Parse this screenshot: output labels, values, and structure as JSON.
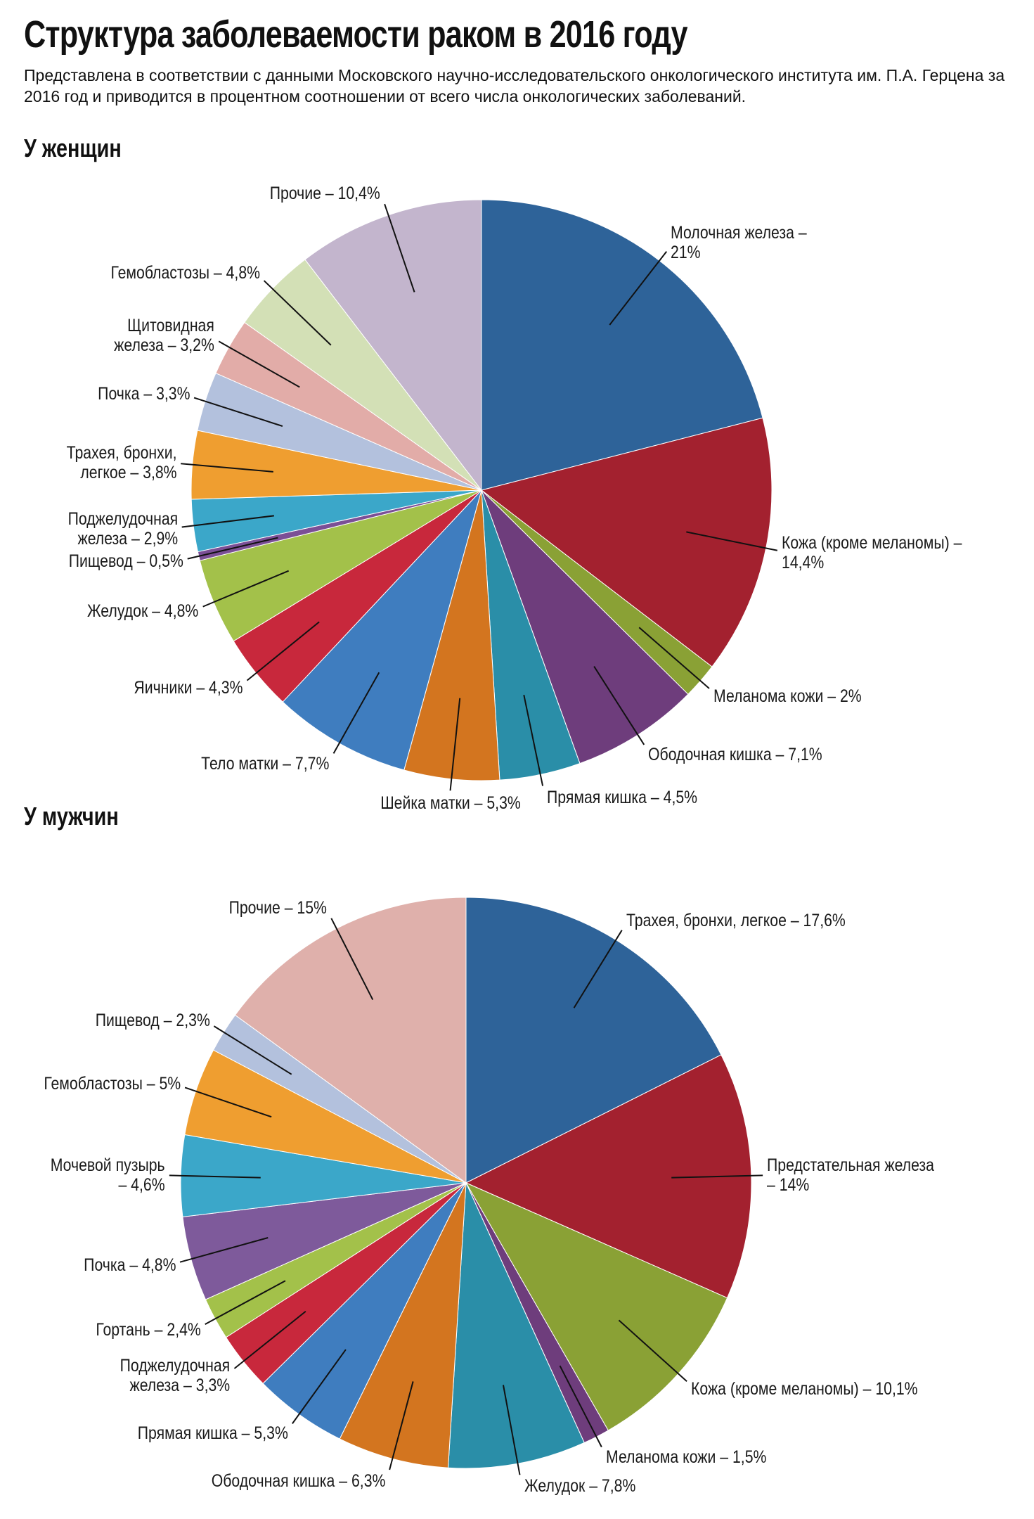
{
  "header": {
    "title": "Структура заболеваемости раком в 2016 году",
    "subtitle": "Представлена в соответствии с данными Московского научно-исследовательского онкологического института им. П.А. Герцена за 2016 год и приводится в процентном соотношении от всего числа онкологических заболеваний."
  },
  "chart_data": [
    {
      "type": "pie",
      "title": "У женщин",
      "categories": [
        "Молочная железа –\n21%",
        "Кожа (кроме меланомы) –\n14,4%",
        "Меланома кожи – 2%",
        "Ободочная кишка – 7,1%",
        "Прямая кишка – 4,5%",
        "Шейка матки – 5,3%",
        "Тело матки – 7,7%",
        "Яичники – 4,3%",
        "Желудок – 4,8%",
        "Пищевод – 0,5%",
        "Поджелудочная\nжелеза – 2,9%",
        "Трахея, бронхи,\nлегкое – 3,8%",
        "Почка – 3,3%",
        "Щитовидная\nжелеза – 3,2%",
        "Гемобластозы – 4,8%",
        "Прочие – 10,4%"
      ],
      "values": [
        21,
        14.4,
        2,
        7.1,
        4.5,
        5.3,
        7.7,
        4.3,
        4.8,
        0.5,
        2.9,
        3.8,
        3.3,
        3.2,
        4.8,
        10.4
      ],
      "colors": [
        "#2e6399",
        "#a3212f",
        "#8aa135",
        "#6e3d7c",
        "#2a8ea8",
        "#d3751f",
        "#3f7dbf",
        "#c8283c",
        "#a3c14a",
        "#7b4f96",
        "#3ba7c9",
        "#ef9e30",
        "#b3c1dd",
        "#e2aca8",
        "#d3e0b6",
        "#c3b5cd"
      ]
    },
    {
      "type": "pie",
      "title": "У мужчин",
      "categories": [
        "Трахея, бронхи, легкое – 17,6%",
        "Предстательная железа\n– 14%",
        "Кожа (кроме меланомы) – 10,1%",
        "Меланома кожи – 1,5%",
        "Желудок – 7,8%",
        "Ободочная кишка – 6,3%",
        "Прямая кишка – 5,3%",
        "Поджелудочная\nжелеза – 3,3%",
        "Гортань – 2,4%",
        "Почка – 4,8%",
        "Мочевой пузырь\n– 4,6%",
        "Гемобластозы – 5%",
        "Пищевод – 2,3%",
        "Прочие – 15%"
      ],
      "values": [
        17.6,
        14,
        10.1,
        1.5,
        7.8,
        6.3,
        5.3,
        3.3,
        2.4,
        4.8,
        4.6,
        5,
        2.3,
        15
      ],
      "colors": [
        "#2e6399",
        "#a3212f",
        "#8aa135",
        "#6e3d7c",
        "#2a8ea8",
        "#d3751f",
        "#3f7dbf",
        "#c8283c",
        "#a3c14a",
        "#7e5a9b",
        "#3ba7c9",
        "#ef9e30",
        "#b3c1dd",
        "#dfb0ab"
      ]
    }
  ]
}
